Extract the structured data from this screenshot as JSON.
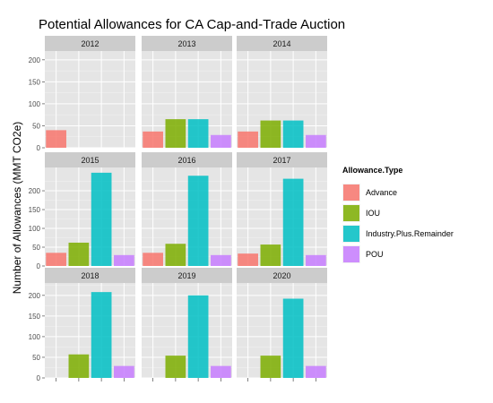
{
  "title": "Potential Allowances for CA Cap-and-Trade Auction",
  "colors": {
    "Advance": "#F8766D",
    "IOU": "#7CAE00",
    "Industry.Plus.Remainder": "#00BFC4",
    "POU": "#C77CFF",
    "panel_bg": "#E5E5E5",
    "strip_bg": "#CCCCCC",
    "grid_major": "#FFFFFF",
    "grid_minor": "#F2F2F2"
  },
  "chart_data": {
    "type": "bar",
    "facet": true,
    "title": "Potential Allowances for CA Cap-and-Trade Auction",
    "ylabel": "Number of Allowances (MMT CO2e)",
    "xlabel": "",
    "categories": [
      "Advance",
      "IOU",
      "Industry.Plus.Remainder",
      "POU"
    ],
    "yticks": [
      0,
      50,
      100,
      150,
      200
    ],
    "grid": true,
    "legend": {
      "title": "Allowance.Type",
      "position": "right",
      "entries": [
        "Advance",
        "IOU",
        "Industry.Plus.Remainder",
        "POU"
      ]
    },
    "row_ylims": [
      [
        0,
        220
      ],
      [
        0,
        262
      ],
      [
        0,
        230
      ]
    ],
    "panels": [
      {
        "strip": "2012",
        "values": {
          "Advance": 40
        }
      },
      {
        "strip": "2013",
        "values": {
          "Advance": 37,
          "IOU": 65,
          "Industry.Plus.Remainder": 65,
          "POU": 29
        }
      },
      {
        "strip": "2014",
        "values": {
          "Advance": 37,
          "IOU": 62,
          "Industry.Plus.Remainder": 62,
          "POU": 29
        }
      },
      {
        "strip": "2015",
        "values": {
          "Advance": 35,
          "IOU": 62,
          "Industry.Plus.Remainder": 248,
          "POU": 29
        }
      },
      {
        "strip": "2016",
        "values": {
          "Advance": 35,
          "IOU": 59,
          "Industry.Plus.Remainder": 240,
          "POU": 29
        }
      },
      {
        "strip": "2017",
        "values": {
          "Advance": 33,
          "IOU": 57,
          "Industry.Plus.Remainder": 232,
          "POU": 29
        }
      },
      {
        "strip": "2018",
        "values": {
          "IOU": 57,
          "Industry.Plus.Remainder": 208,
          "POU": 29
        }
      },
      {
        "strip": "2019",
        "values": {
          "IOU": 54,
          "Industry.Plus.Remainder": 200,
          "POU": 29
        }
      },
      {
        "strip": "2020",
        "values": {
          "IOU": 54,
          "Industry.Plus.Remainder": 192,
          "POU": 29
        }
      }
    ]
  }
}
